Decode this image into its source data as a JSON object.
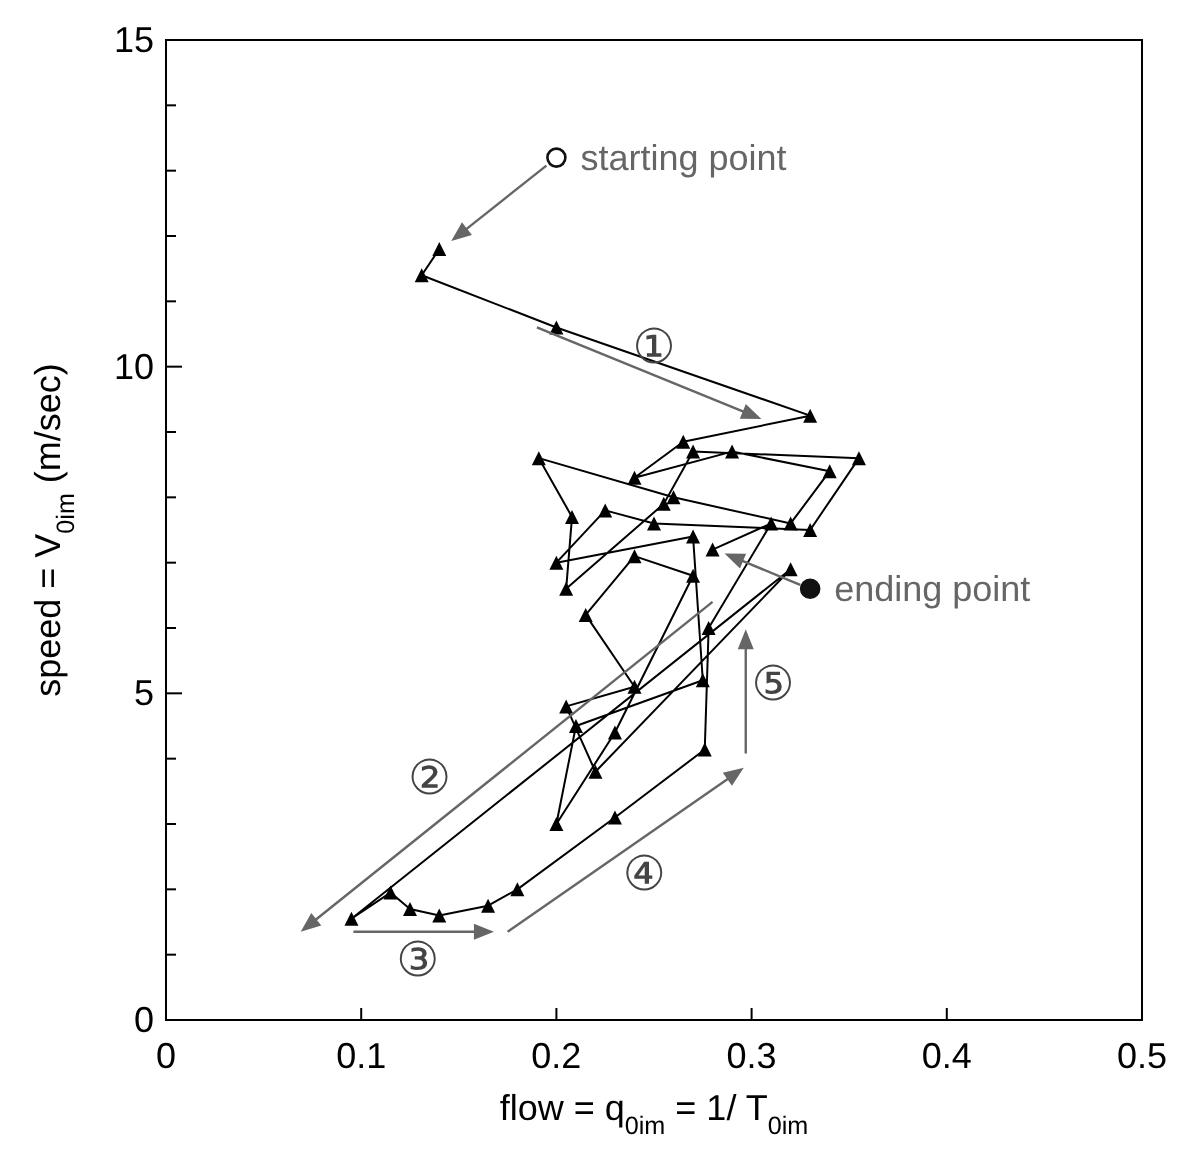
{
  "chart_data": {
    "type": "line",
    "xlabel": "flow = q$_{0im}$ = 1/ T$_{0im}$",
    "ylabel": "speed = V$_{0im}$ (m/sec)",
    "x": [
      0.14,
      0.131,
      0.2,
      0.33,
      0.265,
      0.24,
      0.29,
      0.34,
      0.32,
      0.26,
      0.191,
      0.208,
      0.205,
      0.255,
      0.27,
      0.355,
      0.33,
      0.25,
      0.225,
      0.2,
      0.27,
      0.275,
      0.21,
      0.2,
      0.23,
      0.27,
      0.24,
      0.215,
      0.24,
      0.205,
      0.22,
      0.32,
      0.095,
      0.115,
      0.125,
      0.14,
      0.165,
      0.18,
      0.23,
      0.276,
      0.278,
      0.31,
      0.28
    ],
    "series": [
      {
        "color": "#000000",
        "values": [
          11.8,
          11.4,
          10.6,
          9.25,
          8.85,
          8.3,
          8.7,
          8.4,
          7.6,
          8.0,
          8.6,
          7.7,
          6.6,
          7.9,
          8.7,
          8.6,
          7.5,
          7.6,
          7.8,
          7.0,
          7.4,
          5.2,
          4.5,
          3.0,
          4.4,
          6.8,
          7.1,
          6.2,
          5.1,
          4.8,
          3.8,
          6.9,
          1.55,
          1.95,
          1.7,
          1.6,
          1.75,
          2.0,
          3.1,
          4.14,
          6.0,
          7.6,
          7.2
        ]
      }
    ],
    "xlim": [
      0,
      0.5
    ],
    "xticks": [
      0,
      0.1,
      0.2,
      0.3,
      0.4,
      0.5
    ],
    "ylim": [
      0,
      15
    ],
    "yticks": [
      0,
      {
        "value": 1,
        "label": null
      },
      {
        "value": 2,
        "label": null
      },
      {
        "value": 3,
        "label": null
      },
      {
        "value": 4,
        "label": null
      },
      5,
      {
        "value": 6,
        "label": null
      },
      {
        "value": 7,
        "label": null
      },
      {
        "value": 8,
        "label": null
      },
      {
        "value": 9,
        "label": null
      },
      10,
      {
        "value": 11,
        "label": null
      },
      {
        "value": 12,
        "label": null
      },
      {
        "value": 13,
        "label": null
      },
      {
        "value": 14,
        "label": null
      },
      15
    ],
    "marker": "triangle",
    "grid": false,
    "legend": false,
    "annotations": [
      "starting point",
      "ending point",
      "①",
      "②",
      "③",
      "④",
      "⑤"
    ]
  }
}
